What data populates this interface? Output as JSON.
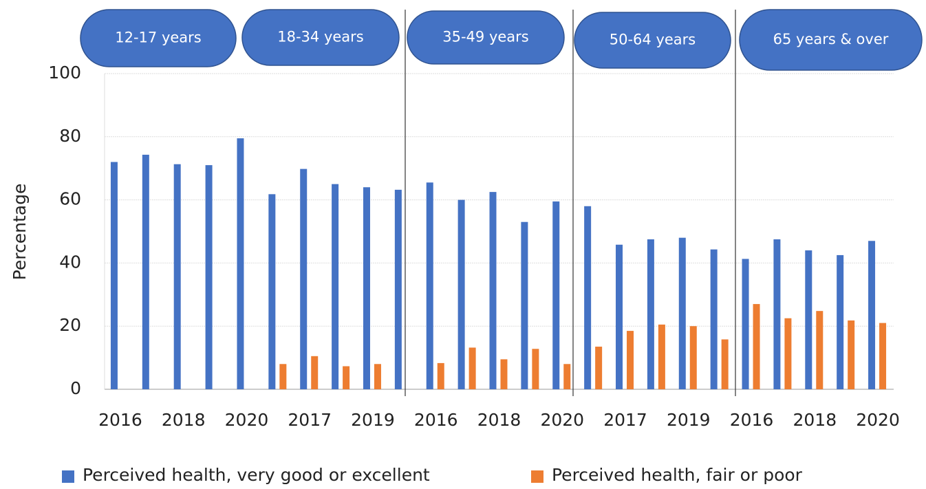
{
  "chart_data": {
    "type": "bar",
    "ylabel": "Percentage",
    "groups": [
      "12-17 years",
      "18-34 years",
      "35-49 years",
      "50-64 years",
      "65 years & over"
    ],
    "categories": [
      "2016",
      null,
      "2018",
      null,
      "2020",
      null,
      "2017",
      null,
      "2019",
      null,
      "2016",
      null,
      "2018",
      null,
      "2020",
      null,
      "2017",
      null,
      "2019",
      null,
      "2016",
      null,
      "2018",
      null,
      "2020"
    ],
    "series": [
      {
        "name": "Perceived health, very good or excellent",
        "color": "#4472c4",
        "values": [
          72,
          74.3,
          71.3,
          71,
          79.5,
          61.8,
          69.8,
          65,
          64,
          63.2,
          65.5,
          60,
          62.5,
          53,
          59.5,
          58,
          45.8,
          47.5,
          48,
          44.3,
          41.3,
          47.5,
          44,
          42.5,
          47
        ]
      },
      {
        "name": "Perceived health, fair or poor",
        "color": "#ed7d31",
        "values": [
          null,
          null,
          null,
          null,
          null,
          8,
          10.5,
          7.3,
          8,
          null,
          8.3,
          13.2,
          9.5,
          12.8,
          8,
          13.5,
          18.5,
          20.5,
          20,
          15.8,
          27,
          22.5,
          24.8,
          21.8,
          21
        ]
      }
    ],
    "ylim": [
      0,
      100
    ],
    "yticks": [
      0,
      20,
      40,
      60,
      80,
      100
    ],
    "grid": true,
    "legend": "bottom"
  }
}
